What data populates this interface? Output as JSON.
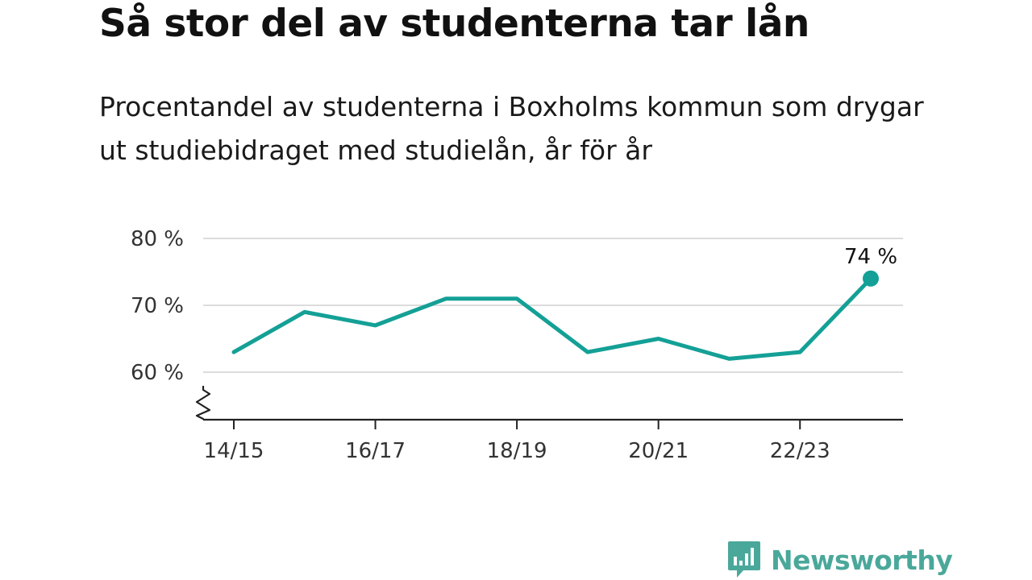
{
  "title": "Så stor del av studenterna tar lån",
  "subtitle": "Procentandel av studenterna i Boxholms kommun som drygar ut studiebidraget med studielån, år för år",
  "brand": {
    "name": "Newsworthy",
    "icon": "newsworthy-chart-icon",
    "color": "#4aa89a"
  },
  "chart_data": {
    "type": "line",
    "x": [
      "14/15",
      "15/16",
      "16/17",
      "17/18",
      "18/19",
      "19/20",
      "20/21",
      "21/22",
      "22/23",
      "23/24"
    ],
    "x_tick_labels": [
      "14/15",
      "16/17",
      "18/19",
      "20/21",
      "22/23"
    ],
    "series": [
      {
        "values": [
          63,
          69,
          67,
          71,
          71,
          63,
          65,
          62,
          63,
          74
        ],
        "color": "#14a096"
      }
    ],
    "y_ticks": [
      60,
      70,
      80
    ],
    "y_tick_labels": [
      "60 %",
      "70 %",
      "80 %"
    ],
    "ylim": [
      53,
      80
    ],
    "y_axis_break": true,
    "grid": true,
    "end_label": "74 %"
  }
}
